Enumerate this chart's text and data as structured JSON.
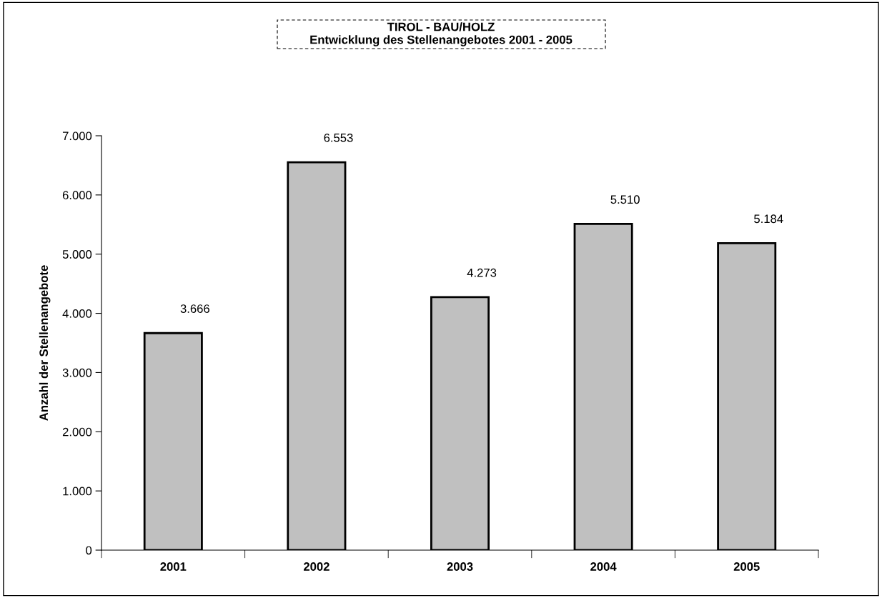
{
  "chart_data": {
    "type": "bar",
    "title": "TIROL - BAU/HOLZ",
    "subtitle": "Entwicklung des Stellenangebotes 2001 - 2005",
    "ylabel": "Anzahl der Stellenangebote",
    "categories": [
      "2001",
      "2002",
      "2003",
      "2004",
      "2005"
    ],
    "values": [
      3666,
      6553,
      4273,
      5510,
      5184
    ],
    "value_labels": [
      "3.666",
      "6.553",
      "4.273",
      "5.510",
      "5.184"
    ],
    "color": "#c0c0c0",
    "ylim": [
      0,
      7000
    ],
    "yticks": [
      0,
      {
        "value": 1000,
        "label": "1.000"
      },
      {
        "value": 2000,
        "label": "2.000"
      },
      {
        "value": 3000,
        "label": "3.000"
      },
      {
        "value": 4000,
        "label": "4.000"
      },
      {
        "value": 5000,
        "label": "5.000"
      },
      {
        "value": 6000,
        "label": "6.000"
      },
      {
        "value": 7000,
        "label": "7.000"
      }
    ],
    "grid": false,
    "legend": false
  }
}
